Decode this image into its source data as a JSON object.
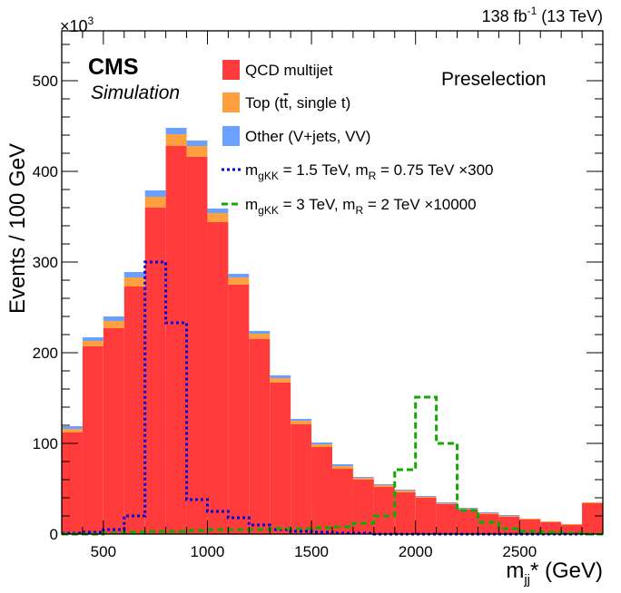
{
  "header": {
    "lumi_main": "138 fb",
    "lumi_sup": "-1",
    "lumi_tail": " (13 TeV)",
    "exponent_base": "×10",
    "exponent_sup": "3"
  },
  "labels": {
    "cms": "CMS",
    "simulation": "Simulation",
    "selection": "Preselection"
  },
  "colors": {
    "qcd": "#ff3b3b",
    "top": "#ffa040",
    "other": "#6aa0ff",
    "signal1": "#0000dd",
    "signal2": "#11aa00"
  },
  "chart_data": {
    "type": "bar",
    "subtype": "stacked-histogram",
    "xlabel": {
      "main": "m",
      "sub": "jj",
      "tail": "* (GeV)"
    },
    "ylabel": "Events / 100 GeV",
    "xlim": [
      300,
      2900
    ],
    "ylim": [
      0,
      555
    ],
    "y_unit_multiplier": 1000,
    "x_ticks": [
      500,
      1000,
      1500,
      2000,
      2500
    ],
    "y_ticks": [
      0,
      100,
      200,
      300,
      400,
      500
    ],
    "bin_edges": [
      300,
      400,
      500,
      600,
      700,
      800,
      900,
      1000,
      1100,
      1200,
      1300,
      1400,
      1500,
      1600,
      1700,
      1800,
      1900,
      2000,
      2100,
      2200,
      2300,
      2400,
      2500,
      2600,
      2700,
      2800,
      2900
    ],
    "series": [
      {
        "name": "QCD multijet",
        "key": "qcd",
        "values": [
          112,
          207,
          227,
          273,
          360,
          428,
          416,
          344,
          275,
          215,
          167,
          121,
          96,
          72,
          60,
          52,
          46,
          40,
          33,
          27,
          22,
          19,
          16,
          13,
          10,
          34
        ]
      },
      {
        "name": "Top (tt̄, single t)",
        "key": "top",
        "values": [
          4,
          6,
          8,
          10,
          12,
          13,
          12,
          10,
          8,
          6,
          5,
          4,
          3,
          3,
          2,
          2,
          2,
          1,
          1,
          1,
          1,
          1,
          1,
          1,
          1,
          1
        ]
      },
      {
        "name": "Other (V+jets, VV)",
        "key": "other",
        "values": [
          3,
          4,
          5,
          6,
          7,
          7,
          6,
          5,
          4,
          3,
          3,
          2,
          2,
          2,
          1,
          1,
          1,
          1,
          1,
          1,
          1,
          1,
          0,
          0,
          0,
          0
        ]
      }
    ],
    "signals": [
      {
        "name": "m_gKK = 1.5 TeV, m_R = 0.75 TeV ×300",
        "key": "signal1",
        "style": "dotted",
        "values": [
          1,
          2,
          5,
          20,
          300,
          233,
          38,
          25,
          18,
          10,
          5,
          3,
          2,
          1,
          1,
          0,
          0,
          0,
          0,
          0,
          0,
          0,
          0,
          0,
          0,
          0
        ]
      },
      {
        "name": "m_gKK = 3 TeV, m_R = 2 TeV ×10000",
        "key": "signal2",
        "style": "dashed",
        "values": [
          0,
          0,
          1,
          2,
          3,
          3,
          4,
          5,
          5,
          5,
          6,
          6,
          7,
          8,
          12,
          20,
          71,
          151,
          100,
          26,
          13,
          6,
          3,
          2,
          1,
          0
        ]
      }
    ],
    "legend": [
      {
        "key": "qcd",
        "type": "box",
        "parts": [
          {
            "t": "QCD multijet"
          }
        ]
      },
      {
        "key": "top",
        "type": "box",
        "parts": [
          {
            "t": "Top (t"
          },
          {
            "t": "t",
            "over": true
          },
          {
            "t": ", single t)"
          }
        ]
      },
      {
        "key": "other",
        "type": "box",
        "parts": [
          {
            "t": "Other (V+jets, VV)"
          }
        ]
      },
      {
        "key": "signal1",
        "type": "line",
        "dash": "3 3",
        "parts": [
          {
            "t": "m"
          },
          {
            "t": "gKK",
            "sub": true
          },
          {
            "t": " = 1.5 TeV, m"
          },
          {
            "t": "R",
            "sub": true
          },
          {
            "t": " = 0.75 TeV ×300"
          }
        ]
      },
      {
        "key": "signal2",
        "type": "line",
        "dash": "7 4",
        "parts": [
          {
            "t": "m"
          },
          {
            "t": "gKK",
            "sub": true
          },
          {
            "t": " = 3 TeV, m"
          },
          {
            "t": "R",
            "sub": true
          },
          {
            "t": " = 2 TeV ×10000"
          }
        ]
      }
    ],
    "legend_position": "top-center",
    "grid": false
  }
}
